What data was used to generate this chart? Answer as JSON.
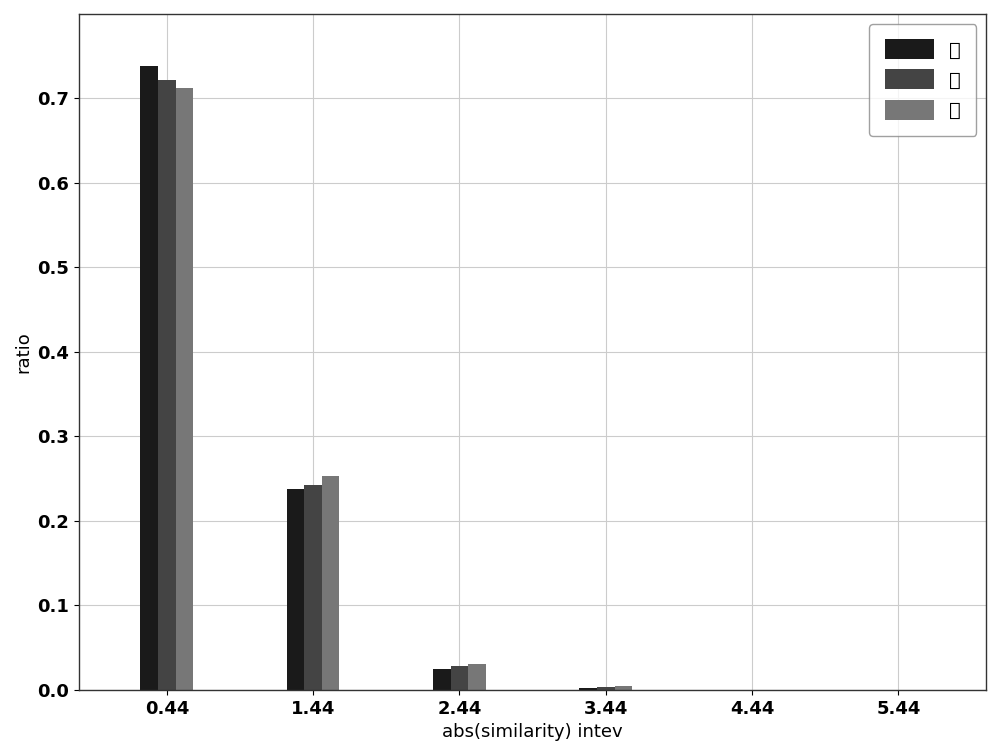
{
  "categories": [
    0.44,
    1.44,
    2.44,
    3.44,
    4.44,
    5.44
  ],
  "series": {
    "差": [
      0.738,
      0.238,
      0.025,
      0.002,
      0.0,
      0.0
    ],
    "中": [
      0.722,
      0.242,
      0.028,
      0.003,
      0.0,
      0.0
    ],
    "優": [
      0.712,
      0.253,
      0.03,
      0.004,
      0.0,
      0.0
    ]
  },
  "colors": {
    "差": "#1a1a1a",
    "中": "#444444",
    "優": "#777777"
  },
  "xlabel": "abs(similarity) intev",
  "ylabel": "ratio",
  "ylim": [
    0.0,
    0.8
  ],
  "yticks": [
    0.0,
    0.1,
    0.2,
    0.3,
    0.4,
    0.5,
    0.6,
    0.7
  ],
  "xtick_labels": [
    "0.44",
    "1.44",
    "2.44",
    "3.44",
    "4.44",
    "5.44"
  ],
  "bar_width": 0.12,
  "background_color": "#ffffff",
  "grid_color": "#cccccc",
  "legend_labels": [
    "差",
    "中",
    "優"
  ],
  "legend_loc": "upper right"
}
